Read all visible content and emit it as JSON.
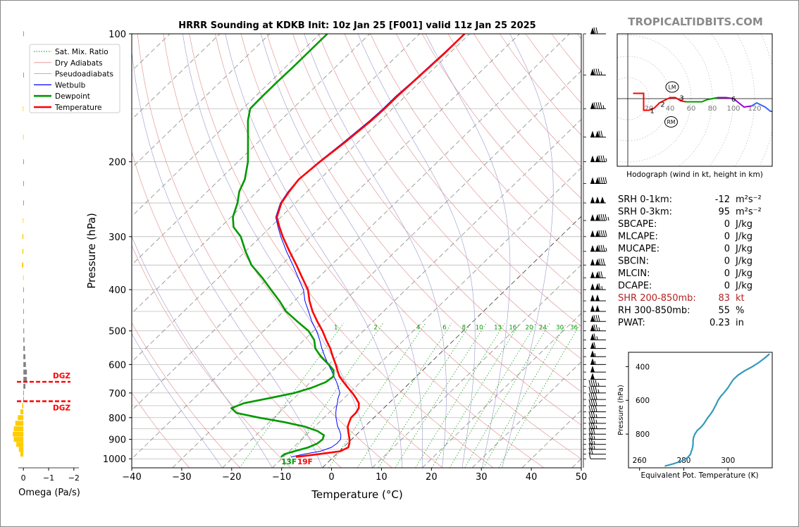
{
  "page": {
    "title": "HRRR Sounding at KDKB Init: 10z Jan 25 [F001] valid 11z Jan 25 2025",
    "watermark": "TROPICALTIDBITS.COM"
  },
  "colors": {
    "temperature": "#ff0000",
    "dewpoint": "#009900",
    "wetbulb": "#0000ff",
    "dry_adiabat": "#e08a8a",
    "pseudoadiabat": "#9999cc",
    "mixing_ratio": "#009900",
    "isotherm": "#888888",
    "dgz": "#ff0000",
    "omega_up": "#ffcc00",
    "omega_down": "#808080",
    "shr": "#b22222",
    "theta_e": "#3399bb"
  },
  "legend": {
    "items": [
      {
        "label": "Sat. Mix. Ratio",
        "style": "dotted",
        "color": "#009900"
      },
      {
        "label": "Dry Adiabats",
        "style": "solid-thin",
        "color": "#e08a8a"
      },
      {
        "label": "Pseudoadiabats",
        "style": "solid-thin",
        "color": "#9999cc"
      },
      {
        "label": "Wetbulb",
        "style": "solid",
        "color": "#0000ff"
      },
      {
        "label": "Dewpoint",
        "style": "thick",
        "color": "#009900"
      },
      {
        "label": "Temperature",
        "style": "thick",
        "color": "#ff0000"
      }
    ]
  },
  "chart_data": [
    {
      "type": "line",
      "name": "skewt",
      "title": "HRRR Sounding at KDKB Init: 10z Jan 25 [F001] valid 11z Jan 25 2025",
      "xlabel": "Temperature (°C)",
      "ylabel": "Pressure (hPa)",
      "xlim": [
        -40,
        50
      ],
      "ylim": [
        1050,
        100
      ],
      "yscale": "log",
      "xticks": [
        -40,
        -30,
        -20,
        -10,
        0,
        10,
        20,
        30,
        40,
        50
      ],
      "xtick_labels": [
        "−40",
        "−30",
        "−20",
        "−10",
        "0",
        "10",
        "20",
        "30",
        "40",
        "50"
      ],
      "yticks": [
        1000,
        900,
        800,
        700,
        600,
        500,
        400,
        300,
        200,
        100
      ],
      "mixing_ratio_labels": [
        "1",
        "2",
        "4",
        "6",
        "8",
        "10",
        "13",
        "16",
        "20",
        "24",
        "30",
        "36"
      ],
      "surface_labels": {
        "dewpoint": "13F",
        "temperature": "19F"
      },
      "series": [
        {
          "name": "Temperature",
          "pressure": [
            990,
            975,
            960,
            940,
            920,
            900,
            880,
            860,
            840,
            820,
            800,
            780,
            760,
            740,
            720,
            700,
            680,
            660,
            640,
            620,
            600,
            575,
            550,
            525,
            500,
            475,
            450,
            425,
            400,
            375,
            350,
            325,
            300,
            285,
            270,
            250,
            235,
            220,
            200,
            180,
            160,
            150,
            140,
            130,
            120,
            110,
            100
          ],
          "values": [
            -7.5,
            -3.5,
            0.2,
            1.0,
            0.4,
            -0.4,
            -1.4,
            -2.4,
            -3.4,
            -4.0,
            -4.6,
            -4.6,
            -5.0,
            -6.0,
            -7.6,
            -9.4,
            -11.4,
            -13.4,
            -15.4,
            -17.0,
            -18.6,
            -20.8,
            -23.0,
            -25.6,
            -28.2,
            -31.2,
            -34.2,
            -37.0,
            -39.6,
            -43.2,
            -47.0,
            -51.2,
            -55.6,
            -58.2,
            -60.8,
            -62.8,
            -63.6,
            -64.2,
            -63.6,
            -62.6,
            -61.8,
            -61.6,
            -61.6,
            -61.4,
            -61.2,
            -61.0,
            -61.0
          ]
        },
        {
          "name": "Dewpoint",
          "pressure": [
            990,
            975,
            960,
            940,
            920,
            900,
            880,
            860,
            840,
            820,
            800,
            780,
            760,
            740,
            720,
            700,
            680,
            660,
            640,
            620,
            600,
            575,
            550,
            525,
            500,
            475,
            450,
            425,
            400,
            375,
            350,
            325,
            300,
            285,
            270,
            250,
            235,
            220,
            200,
            180,
            160,
            150,
            140,
            130,
            120,
            110,
            100
          ],
          "values": [
            -10.5,
            -10.4,
            -9.0,
            -7.0,
            -6.0,
            -5.8,
            -6.4,
            -8.6,
            -12.0,
            -17.0,
            -23.0,
            -28.5,
            -30.5,
            -29.0,
            -25.0,
            -21.0,
            -18.6,
            -17.0,
            -16.6,
            -17.8,
            -20.0,
            -23.2,
            -26.0,
            -28.0,
            -31.0,
            -35.2,
            -39.5,
            -43.0,
            -47.0,
            -51.2,
            -56.0,
            -60.0,
            -64.0,
            -67.4,
            -69.6,
            -71.6,
            -73.6,
            -75.0,
            -78.0,
            -82.0,
            -86.5,
            -88.5,
            -88.6,
            -88.6,
            -88.5,
            -88.5,
            -88.5
          ]
        },
        {
          "name": "Wetbulb",
          "pressure": [
            990,
            975,
            960,
            940,
            920,
            900,
            880,
            860,
            840,
            820,
            800,
            780,
            760,
            740,
            720,
            700,
            680,
            660,
            640,
            620,
            600,
            575,
            550,
            525,
            500,
            475,
            450,
            425,
            400,
            375,
            350,
            325,
            300,
            285,
            270,
            250,
            235,
            220,
            200,
            180,
            160,
            150,
            140,
            130,
            120,
            110,
            100
          ],
          "values": [
            -8.5,
            -6.5,
            -3.8,
            -2.4,
            -2.1,
            -2.2,
            -3.0,
            -4.1,
            -5.4,
            -6.5,
            -7.6,
            -8.6,
            -9.5,
            -10.3,
            -11.2,
            -11.9,
            -13.3,
            -14.8,
            -16.5,
            -18.2,
            -20.1,
            -22.4,
            -24.7,
            -26.9,
            -29.4,
            -32.3,
            -35.0,
            -37.9,
            -40.5,
            -44.0,
            -47.7,
            -51.8,
            -56.0,
            -58.5,
            -61.0,
            -63.0,
            -63.8,
            -64.3,
            -63.8,
            -62.9,
            -62.1,
            -61.9,
            -61.9,
            -61.6,
            -61.4,
            -61.2,
            -61.1
          ]
        }
      ]
    },
    {
      "type": "bar",
      "name": "omega",
      "xlabel": "Omega (Pa/s)",
      "xlim": [
        0.2,
        -2.2
      ],
      "xticks": [
        0,
        -1,
        -2
      ],
      "xtick_labels": [
        "0",
        "−1",
        "−2"
      ],
      "pressure": [
        975,
        950,
        925,
        900,
        875,
        850,
        825,
        800,
        775,
        750,
        725,
        700,
        675,
        650,
        625,
        600,
        575,
        550,
        525,
        500,
        475,
        450,
        425,
        400,
        375,
        350,
        325,
        300,
        275,
        250,
        225,
        200,
        175,
        150,
        125,
        100
      ],
      "values": [
        0.12,
        0.18,
        0.28,
        0.38,
        0.42,
        0.38,
        0.32,
        0.22,
        0.12,
        0.05,
        0.0,
        -0.02,
        -0.08,
        -0.14,
        -0.14,
        -0.1,
        -0.08,
        -0.06,
        -0.04,
        -0.03,
        -0.02,
        -0.02,
        -0.02,
        0.0,
        0.01,
        0.06,
        0.04,
        0.04,
        0.02,
        0.0,
        -0.02,
        -0.02,
        0.01,
        0.02,
        -0.02,
        -0.02
      ],
      "dgz": {
        "label_top": "DGZ",
        "label_bottom": "DGZ",
        "top_pressure": 659,
        "bottom_pressure": 732
      }
    },
    {
      "type": "line",
      "name": "hodograph",
      "title": "Hodograph (wind in kt, height in km)",
      "ring_labels": [
        "20",
        "40",
        "60",
        "80",
        "100",
        "120"
      ],
      "points_u_v": [
        [
          5,
          5
        ],
        [
          15,
          5
        ],
        [
          15,
          -11
        ],
        [
          20,
          -11
        ],
        [
          25,
          -9
        ],
        [
          30,
          -4
        ],
        [
          36,
          -1
        ],
        [
          40,
          1
        ],
        [
          45,
          1
        ],
        [
          50,
          -2
        ],
        [
          55,
          -3
        ],
        [
          60,
          -3
        ],
        [
          70,
          -3
        ],
        [
          75,
          -1
        ],
        [
          80,
          0
        ],
        [
          85,
          1
        ],
        [
          93,
          1
        ],
        [
          100,
          0
        ],
        [
          105,
          -4
        ],
        [
          110,
          -8
        ],
        [
          117,
          -7
        ],
        [
          122,
          -4
        ],
        [
          130,
          -8
        ],
        [
          135,
          -12
        ],
        [
          140,
          -12
        ]
      ],
      "height_labels": [
        {
          "km": "1",
          "u": 23,
          "v": -11
        },
        {
          "km": "2",
          "u": 33,
          "v": -5
        },
        {
          "km": "3",
          "u": 51,
          "v": 1
        },
        {
          "km": "6",
          "u": 100,
          "v": 0
        },
        {
          "km": "9",
          "u": 144,
          "v": -13
        }
      ],
      "segment_colors": [
        "#ff0000",
        "#009900",
        "#9900cc",
        "#3366ff"
      ],
      "markers": [
        {
          "label": "LM",
          "u": 42,
          "v": 11
        },
        {
          "label": "RM",
          "u": 41,
          "v": -22
        }
      ]
    },
    {
      "type": "line",
      "name": "theta_e",
      "xlabel": "Equivalent Pot. Temperature (K)",
      "ylabel": "Pressure (hPa)",
      "xlim": [
        255,
        320
      ],
      "ylim": [
        1000,
        315
      ],
      "xticks": [
        260,
        280,
        300
      ],
      "yticks": [
        400,
        600,
        800
      ],
      "pressure": [
        990,
        975,
        960,
        940,
        920,
        900,
        880,
        860,
        840,
        820,
        800,
        780,
        760,
        740,
        720,
        700,
        680,
        660,
        640,
        620,
        600,
        575,
        550,
        525,
        500,
        475,
        450,
        425,
        400,
        375,
        350,
        325
      ],
      "values": [
        271.4,
        275.6,
        279.0,
        281.7,
        283.0,
        283.5,
        284.0,
        284.2,
        284.2,
        284.4,
        285.0,
        286.0,
        287.7,
        289.0,
        290.0,
        291.0,
        292.2,
        293.2,
        294.0,
        294.8,
        295.5,
        296.8,
        298.5,
        300.0,
        301.2,
        302.5,
        304.6,
        307.5,
        311.0,
        314.0,
        316.5,
        318.8
      ]
    }
  ],
  "barbs": {
    "pressure": [
      1000,
      975,
      950,
      925,
      900,
      875,
      850,
      825,
      800,
      775,
      750,
      725,
      700,
      675,
      650,
      625,
      600,
      575,
      550,
      525,
      500,
      475,
      450,
      425,
      400,
      375,
      350,
      325,
      300,
      275,
      250,
      225,
      200,
      175,
      150,
      125,
      100
    ],
    "speed_kt": [
      10,
      20,
      25,
      25,
      25,
      30,
      35,
      35,
      35,
      40,
      40,
      40,
      45,
      45,
      50,
      50,
      55,
      55,
      60,
      65,
      75,
      80,
      100,
      100,
      115,
      120,
      130,
      135,
      140,
      145,
      150,
      140,
      135,
      120,
      95,
      85,
      70
    ]
  },
  "stats": {
    "rows": [
      {
        "label": "SRH 0-1km:",
        "value": "-12",
        "unit": "m²s⁻²",
        "highlight": false
      },
      {
        "label": "SRH 0-3km:",
        "value": "95",
        "unit": "m²s⁻²",
        "highlight": false
      },
      {
        "label": "SBCAPE:",
        "value": "0",
        "unit": "J/kg",
        "highlight": false
      },
      {
        "label": "MLCAPE:",
        "value": "0",
        "unit": "J/kg",
        "highlight": false
      },
      {
        "label": "MUCAPE:",
        "value": "0",
        "unit": "J/kg",
        "highlight": false
      },
      {
        "label": "SBCIN:",
        "value": "0",
        "unit": "J/kg",
        "highlight": false
      },
      {
        "label": "MLCIN:",
        "value": "0",
        "unit": "J/kg",
        "highlight": false
      },
      {
        "label": "DCAPE:",
        "value": "0",
        "unit": "J/kg",
        "highlight": false
      },
      {
        "label": "SHR 200-850mb:",
        "value": "83",
        "unit": "kt",
        "highlight": true
      },
      {
        "label": "RH 300-850mb:",
        "value": "55",
        "unit": "%",
        "highlight": false
      },
      {
        "label": "PWAT:",
        "value": "0.23",
        "unit": "in",
        "highlight": false
      }
    ]
  }
}
